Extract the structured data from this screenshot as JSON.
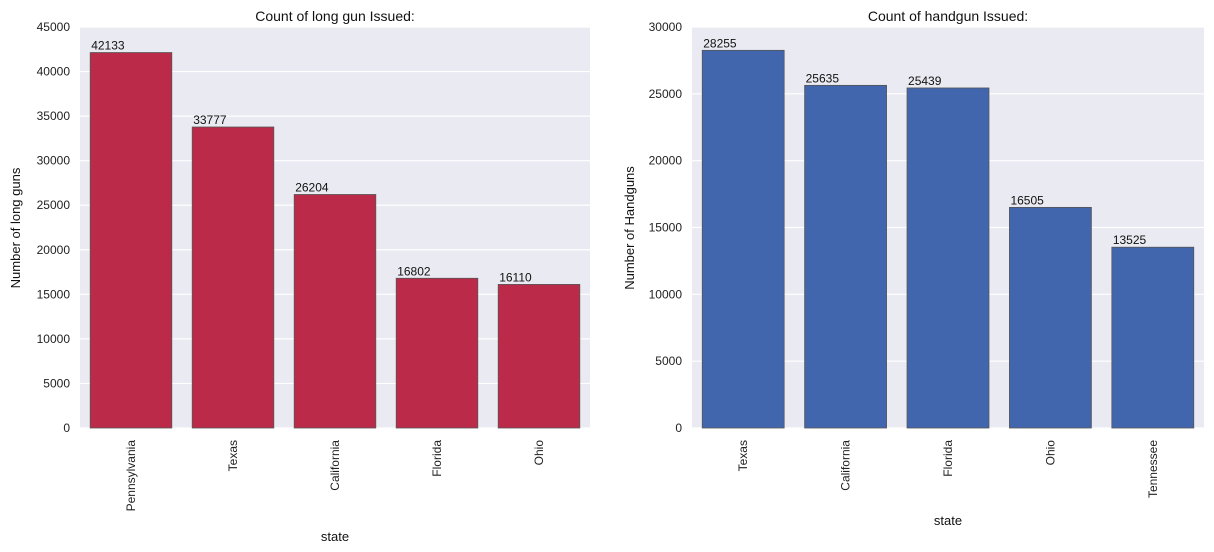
{
  "chart_data": [
    {
      "type": "bar",
      "title": "Count of long gun Issued:",
      "xlabel": "state",
      "ylabel": "Number of long guns",
      "categories": [
        "Pennsylvania",
        "Texas",
        "California",
        "Florida",
        "Ohio"
      ],
      "values": [
        42133,
        33777,
        26204,
        16802,
        16110
      ],
      "data_labels": [
        "42133",
        "33777",
        "26204",
        "16802",
        "16110"
      ],
      "ylim": [
        0,
        45000
      ],
      "yticks": [
        "0",
        "5000",
        "10000",
        "15000",
        "20000",
        "25000",
        "30000",
        "35000",
        "40000",
        "45000"
      ],
      "grid": true,
      "color": "#bc2a4a"
    },
    {
      "type": "bar",
      "title": "Count of handgun Issued:",
      "xlabel": "state",
      "ylabel": "Number of Handguns",
      "categories": [
        "Texas",
        "California",
        "Florida",
        "Ohio",
        "Tennessee"
      ],
      "values": [
        28255,
        25635,
        25439,
        16505,
        13525
      ],
      "data_labels": [
        "28255",
        "25635",
        "25439",
        "16505",
        "13525"
      ],
      "ylim": [
        0,
        30000
      ],
      "yticks": [
        "0",
        "5000",
        "10000",
        "15000",
        "20000",
        "25000",
        "30000"
      ],
      "grid": true,
      "color": "#4266ae"
    }
  ]
}
